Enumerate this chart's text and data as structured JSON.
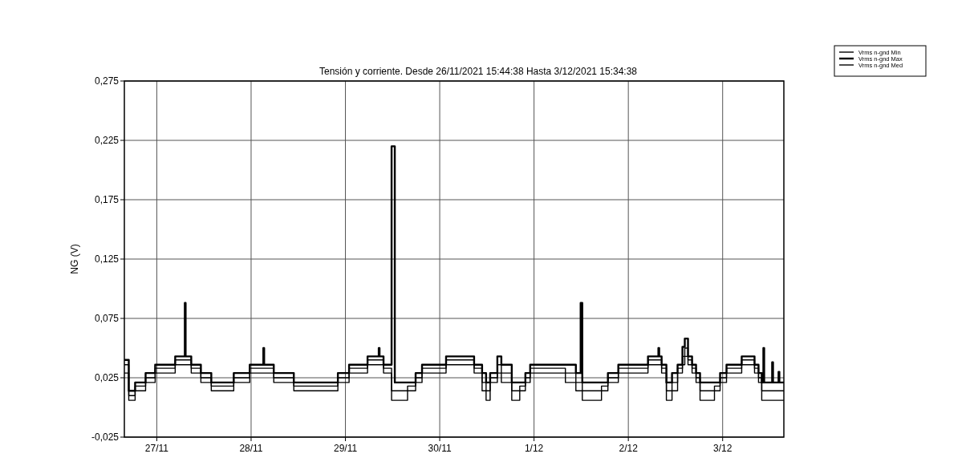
{
  "chart_data": {
    "type": "step",
    "title": "Tensión y corriente. Desde 26/11/2021 15:44:38 Hasta 3/12/2021 15:34:38",
    "ylabel": "NG (V)",
    "x": [
      "2021-11-26T15:45",
      "2021-11-26T16:52",
      "2021-11-26T18:29",
      "2021-11-26T21:09",
      "2021-11-26T23:35",
      "2021-11-27T04:41",
      "2021-11-27T07:08",
      "2021-11-27T07:20",
      "2021-11-27T08:46",
      "2021-11-27T11:13",
      "2021-11-27T13:52",
      "2021-11-27T19:35",
      "2021-11-27T23:39",
      "2021-11-28T03:07",
      "2021-11-28T03:19",
      "2021-11-28T05:46",
      "2021-11-28T10:52",
      "2021-11-28T13:19",
      "2021-11-28T22:05",
      "2021-11-29T00:56",
      "2021-11-29T05:38",
      "2021-11-29T08:29",
      "2021-11-29T08:41",
      "2021-11-29T09:42",
      "2021-11-29T11:45",
      "2021-11-29T12:34",
      "2021-11-29T15:49",
      "2021-11-29T17:52",
      "2021-11-29T19:30",
      "2021-11-30T01:37",
      "2021-11-30T08:45",
      "2021-11-30T10:47",
      "2021-11-30T11:48",
      "2021-11-30T12:50",
      "2021-11-30T14:40",
      "2021-11-30T15:41",
      "2021-11-30T18:20",
      "2021-11-30T20:22",
      "2021-11-30T21:48",
      "2021-11-30T23:01",
      "2021-12-01T07:59",
      "2021-12-01T10:39",
      "2021-12-01T11:52",
      "2021-12-01T12:17",
      "2021-12-01T17:10",
      "2021-12-01T18:48",
      "2021-12-01T21:27",
      "2021-12-02T05:00",
      "2021-12-02T07:39",
      "2021-12-02T07:51",
      "2021-12-02T08:28",
      "2021-12-02T09:41",
      "2021-12-02T11:07",
      "2021-12-02T12:32",
      "2021-12-02T13:46",
      "2021-12-02T14:22",
      "2021-12-02T15:11",
      "2021-12-02T16:13",
      "2021-12-02T17:14",
      "2021-12-02T18:15",
      "2021-12-02T21:55",
      "2021-12-02T23:21",
      "2021-12-03T00:59",
      "2021-12-03T04:51",
      "2021-12-03T08:07",
      "2021-12-03T09:08",
      "2021-12-03T09:57",
      "2021-12-03T10:22",
      "2021-12-03T10:34",
      "2021-12-03T12:36",
      "2021-12-03T12:49",
      "2021-12-03T14:14",
      "2021-12-03T14:26",
      "2021-12-03T15:34"
    ],
    "series": [
      {
        "name": "Vrms n-gnd Min",
        "color": "#000000",
        "values": [
          0.029,
          0.006,
          0.014,
          0.021,
          0.029,
          0.036,
          0.036,
          0.036,
          0.029,
          0.021,
          0.014,
          0.021,
          0.029,
          0.029,
          0.029,
          0.021,
          0.014,
          0.014,
          0.021,
          0.029,
          0.036,
          0.036,
          0.036,
          0.029,
          0.006,
          0.006,
          0.014,
          0.021,
          0.029,
          0.036,
          0.029,
          0.014,
          0.006,
          0.021,
          0.029,
          0.021,
          0.006,
          0.014,
          0.021,
          0.029,
          0.021,
          0.014,
          0.014,
          0.006,
          0.014,
          0.021,
          0.029,
          0.036,
          0.036,
          0.036,
          0.029,
          0.006,
          0.014,
          0.029,
          0.036,
          0.043,
          0.036,
          0.029,
          0.021,
          0.006,
          0.014,
          0.021,
          0.029,
          0.036,
          0.029,
          0.021,
          0.006,
          0.006,
          0.006,
          0.006,
          0.006,
          0.006,
          0.006,
          0.006
        ]
      },
      {
        "name": "Vrms n-gnd Max",
        "color": "#000000",
        "values": [
          0.04,
          0.014,
          0.021,
          0.029,
          0.036,
          0.043,
          0.088,
          0.043,
          0.036,
          0.029,
          0.021,
          0.029,
          0.036,
          0.05,
          0.036,
          0.029,
          0.021,
          0.021,
          0.029,
          0.036,
          0.043,
          0.05,
          0.043,
          0.036,
          0.22,
          0.021,
          0.021,
          0.029,
          0.036,
          0.043,
          0.036,
          0.029,
          0.021,
          0.029,
          0.043,
          0.036,
          0.021,
          0.021,
          0.029,
          0.036,
          0.036,
          0.029,
          0.088,
          0.021,
          0.021,
          0.029,
          0.036,
          0.043,
          0.05,
          0.043,
          0.036,
          0.021,
          0.029,
          0.036,
          0.051,
          0.058,
          0.043,
          0.036,
          0.029,
          0.021,
          0.021,
          0.029,
          0.036,
          0.043,
          0.036,
          0.029,
          0.021,
          0.05,
          0.021,
          0.038,
          0.021,
          0.03,
          0.021,
          0.021
        ]
      },
      {
        "name": "Vrms n-gnd Med",
        "color": "#000000",
        "values": [
          0.036,
          0.01,
          0.018,
          0.025,
          0.033,
          0.04,
          0.04,
          0.04,
          0.033,
          0.025,
          0.018,
          0.025,
          0.033,
          0.033,
          0.033,
          0.025,
          0.018,
          0.018,
          0.025,
          0.033,
          0.04,
          0.04,
          0.04,
          0.033,
          0.014,
          0.014,
          0.018,
          0.025,
          0.033,
          0.04,
          0.033,
          0.021,
          0.014,
          0.025,
          0.036,
          0.029,
          0.014,
          0.018,
          0.025,
          0.033,
          0.029,
          0.021,
          0.021,
          0.014,
          0.018,
          0.025,
          0.033,
          0.04,
          0.04,
          0.04,
          0.033,
          0.014,
          0.021,
          0.033,
          0.043,
          0.05,
          0.04,
          0.033,
          0.025,
          0.014,
          0.018,
          0.025,
          0.033,
          0.04,
          0.033,
          0.025,
          0.014,
          0.014,
          0.014,
          0.014,
          0.014,
          0.014,
          0.014,
          0.014
        ]
      }
    ],
    "xlim": [
      "2021-11-26T15:44:38",
      "2021-12-03T15:34:38"
    ],
    "xticks": [
      {
        "value": "2021-11-27",
        "label": "27/11"
      },
      {
        "value": "2021-11-28",
        "label": "28/11"
      },
      {
        "value": "2021-11-29",
        "label": "29/11"
      },
      {
        "value": "2021-11-30",
        "label": "30/11"
      },
      {
        "value": "2021-12-01",
        "label": "1/12"
      },
      {
        "value": "2021-12-02",
        "label": "2/12"
      },
      {
        "value": "2021-12-03",
        "label": "3/12"
      }
    ],
    "ylim": [
      -0.025,
      0.275
    ],
    "yticks": [
      {
        "value": -0.025,
        "label": "-0,025"
      },
      {
        "value": 0.025,
        "label": "0,025"
      },
      {
        "value": 0.075,
        "label": "0,075"
      },
      {
        "value": 0.125,
        "label": "0,125"
      },
      {
        "value": 0.175,
        "label": "0,175"
      },
      {
        "value": 0.225,
        "label": "0,225"
      },
      {
        "value": 0.275,
        "label": "0,275"
      }
    ],
    "grid": true,
    "legend": "top right",
    "marker": "none",
    "line_style": "solid"
  }
}
